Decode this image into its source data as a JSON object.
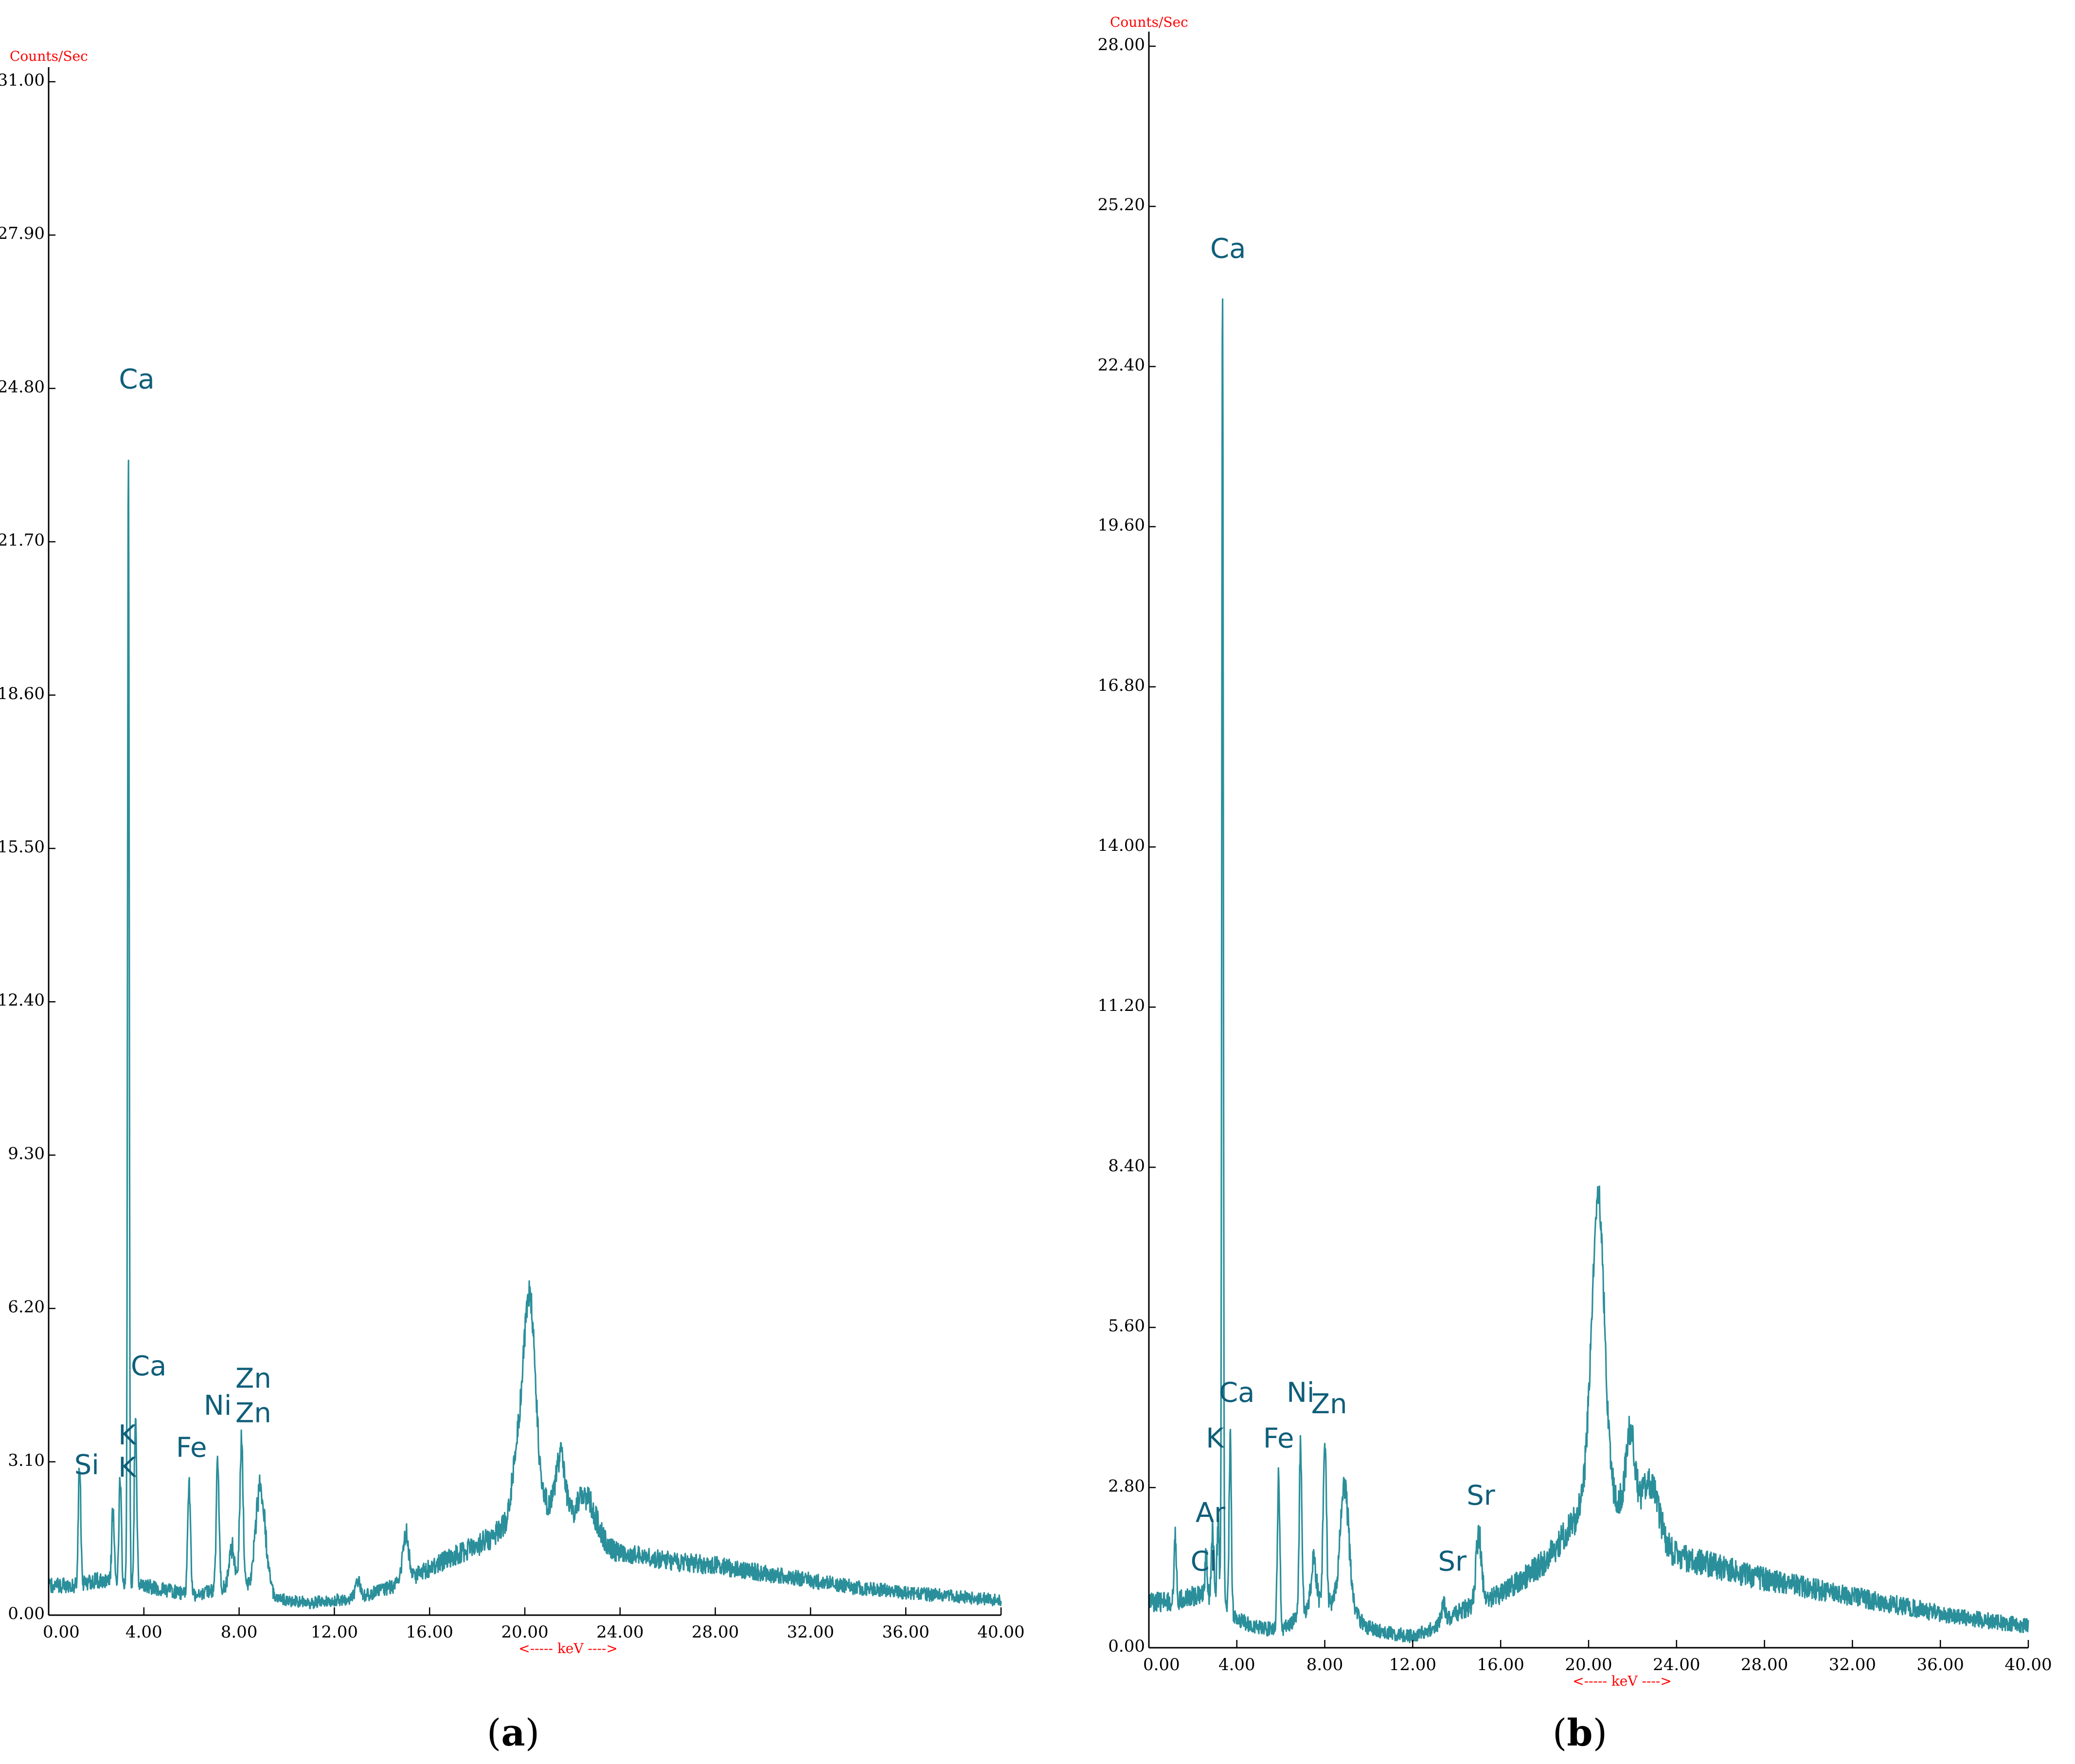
{
  "colors": {
    "spectrum": "#2a8f9a",
    "peak_label": "#0f5f7a",
    "unit_text": "#ff0000",
    "axis": "#000000",
    "tick_label": "#000000"
  },
  "chart_data": [
    {
      "panel": "a",
      "type": "line",
      "x_unit_label": "<----- keV ---->",
      "y_unit_label": "Counts/Sec",
      "xlim": [
        0,
        40
      ],
      "ylim": [
        0,
        31
      ],
      "x_ticks": [
        "0.00",
        "4.00",
        "8.00",
        "12.00",
        "16.00",
        "20.00",
        "24.00",
        "28.00",
        "32.00",
        "36.00",
        "40.00"
      ],
      "y_ticks": [
        "0.00",
        "3.10",
        "6.20",
        "9.30",
        "12.40",
        "15.50",
        "18.60",
        "21.70",
        "24.80",
        "27.90",
        "31.00"
      ],
      "panel_label": {
        "open": "(",
        "letter": "a",
        "close": ")"
      },
      "grid": false,
      "peaks": [
        {
          "x": 1.3,
          "y": 2.4,
          "w": 0.05
        },
        {
          "x": 2.7,
          "y": 1.4,
          "w": 0.05
        },
        {
          "x": 3.0,
          "y": 2.1,
          "w": 0.05
        },
        {
          "x": 3.35,
          "y": 22.9,
          "w": 0.035
        },
        {
          "x": 3.65,
          "y": 3.6,
          "w": 0.05
        },
        {
          "x": 5.9,
          "y": 2.2,
          "w": 0.06
        },
        {
          "x": 7.1,
          "y": 2.6,
          "w": 0.06
        },
        {
          "x": 7.7,
          "y": 0.8,
          "w": 0.12
        },
        {
          "x": 8.1,
          "y": 2.9,
          "w": 0.07
        },
        {
          "x": 8.9,
          "y": 2.1,
          "w": 0.2
        },
        {
          "x": 13.0,
          "y": 0.3,
          "w": 0.1
        },
        {
          "x": 15.0,
          "y": 1.0,
          "w": 0.12
        },
        {
          "x": 19.7,
          "y": 1.2,
          "w": 0.25
        },
        {
          "x": 20.2,
          "y": 4.3,
          "w": 0.25
        },
        {
          "x": 21.5,
          "y": 1.2,
          "w": 0.2
        },
        {
          "x": 22.6,
          "y": 0.8,
          "w": 0.4
        }
      ],
      "background": [
        [
          0,
          0.6
        ],
        [
          1,
          0.6
        ],
        [
          2,
          0.7
        ],
        [
          3,
          0.7
        ],
        [
          4,
          0.6
        ],
        [
          5,
          0.5
        ],
        [
          6,
          0.4
        ],
        [
          7,
          0.5
        ],
        [
          8,
          0.6
        ],
        [
          9,
          0.5
        ],
        [
          10,
          0.3
        ],
        [
          11,
          0.25
        ],
        [
          12,
          0.3
        ],
        [
          13,
          0.35
        ],
        [
          14,
          0.5
        ],
        [
          15,
          0.7
        ],
        [
          16,
          0.95
        ],
        [
          17,
          1.2
        ],
        [
          18,
          1.4
        ],
        [
          19,
          1.7
        ],
        [
          20,
          2.0
        ],
        [
          21,
          2.2
        ],
        [
          22,
          1.8
        ],
        [
          23,
          1.45
        ],
        [
          24,
          1.25
        ],
        [
          26,
          1.1
        ],
        [
          28,
          1.0
        ],
        [
          30,
          0.85
        ],
        [
          32,
          0.7
        ],
        [
          34,
          0.55
        ],
        [
          36,
          0.45
        ],
        [
          38,
          0.38
        ],
        [
          40,
          0.3
        ]
      ],
      "peak_labels": [
        {
          "text": "Ca",
          "x": 3.7,
          "y": 24.8
        },
        {
          "text": "Ca",
          "x": 4.2,
          "y": 4.85
        },
        {
          "text": "K",
          "x": 3.3,
          "y": 3.45
        },
        {
          "text": "K",
          "x": 3.3,
          "y": 2.8
        },
        {
          "text": "Si",
          "x": 1.6,
          "y": 2.85
        },
        {
          "text": "Fe",
          "x": 6.0,
          "y": 3.2
        },
        {
          "text": "Ni",
          "x": 7.1,
          "y": 4.05
        },
        {
          "text": "Zn",
          "x": 8.6,
          "y": 4.6
        },
        {
          "text": "Zn",
          "x": 8.6,
          "y": 3.9
        }
      ]
    },
    {
      "panel": "b",
      "type": "line",
      "x_unit_label": "<----- keV ---->",
      "y_unit_label": "Counts/Sec",
      "xlim": [
        0,
        40
      ],
      "ylim": [
        0,
        28
      ],
      "x_ticks": [
        "0.00",
        "4.00",
        "8.00",
        "12.00",
        "16.00",
        "20.00",
        "24.00",
        "28.00",
        "32.00",
        "36.00",
        "40.00"
      ],
      "y_ticks": [
        "0.00",
        "2.80",
        "5.60",
        "8.40",
        "11.20",
        "14.00",
        "16.80",
        "19.60",
        "22.40",
        "25.20",
        "28.00"
      ],
      "panel_label": {
        "open": "(",
        "letter": "b",
        "close": ")"
      },
      "grid": false,
      "peaks": [
        {
          "x": 1.2,
          "y": 1.2,
          "w": 0.05
        },
        {
          "x": 2.6,
          "y": 0.7,
          "w": 0.05
        },
        {
          "x": 2.9,
          "y": 1.2,
          "w": 0.05
        },
        {
          "x": 3.15,
          "y": 1.4,
          "w": 0.05
        },
        {
          "x": 3.35,
          "y": 23.2,
          "w": 0.035
        },
        {
          "x": 3.7,
          "y": 3.0,
          "w": 0.05
        },
        {
          "x": 5.9,
          "y": 2.6,
          "w": 0.06
        },
        {
          "x": 6.9,
          "y": 3.0,
          "w": 0.06
        },
        {
          "x": 7.5,
          "y": 0.8,
          "w": 0.12
        },
        {
          "x": 8.0,
          "y": 2.9,
          "w": 0.07
        },
        {
          "x": 8.9,
          "y": 2.1,
          "w": 0.2
        },
        {
          "x": 13.4,
          "y": 0.3,
          "w": 0.1
        },
        {
          "x": 15.0,
          "y": 1.2,
          "w": 0.12
        },
        {
          "x": 20.2,
          "y": 1.7,
          "w": 0.25
        },
        {
          "x": 20.5,
          "y": 4.3,
          "w": 0.25
        },
        {
          "x": 21.9,
          "y": 1.5,
          "w": 0.2
        },
        {
          "x": 22.8,
          "y": 0.9,
          "w": 0.4
        }
      ],
      "background": [
        [
          0,
          0.8
        ],
        [
          1,
          0.8
        ],
        [
          2,
          0.9
        ],
        [
          3,
          0.9
        ],
        [
          4,
          0.5
        ],
        [
          5,
          0.35
        ],
        [
          6,
          0.3
        ],
        [
          7,
          0.6
        ],
        [
          8,
          0.8
        ],
        [
          9,
          0.7
        ],
        [
          10,
          0.35
        ],
        [
          11,
          0.25
        ],
        [
          12,
          0.2
        ],
        [
          13,
          0.35
        ],
        [
          14,
          0.6
        ],
        [
          15,
          0.8
        ],
        [
          16,
          0.95
        ],
        [
          17,
          1.2
        ],
        [
          18,
          1.5
        ],
        [
          19,
          2.0
        ],
        [
          20,
          2.6
        ],
        [
          21,
          2.7
        ],
        [
          22,
          2.2
        ],
        [
          23,
          1.9
        ],
        [
          24,
          1.6
        ],
        [
          26,
          1.4
        ],
        [
          28,
          1.2
        ],
        [
          30,
          1.05
        ],
        [
          32,
          0.9
        ],
        [
          34,
          0.75
        ],
        [
          36,
          0.6
        ],
        [
          38,
          0.48
        ],
        [
          40,
          0.38
        ]
      ],
      "peak_labels": [
        {
          "text": "Ca",
          "x": 3.6,
          "y": 24.3
        },
        {
          "text": "Ca",
          "x": 4.0,
          "y": 4.3
        },
        {
          "text": "K",
          "x": 3.0,
          "y": 3.5
        },
        {
          "text": "Ar",
          "x": 2.8,
          "y": 2.2
        },
        {
          "text": "Cl",
          "x": 2.5,
          "y": 1.35
        },
        {
          "text": "Fe",
          "x": 5.9,
          "y": 3.5
        },
        {
          "text": "Ni",
          "x": 6.9,
          "y": 4.3
        },
        {
          "text": "Zn",
          "x": 8.2,
          "y": 4.1
        },
        {
          "text": "Sr",
          "x": 13.8,
          "y": 1.35
        },
        {
          "text": "Sr",
          "x": 15.1,
          "y": 2.5
        }
      ]
    }
  ]
}
